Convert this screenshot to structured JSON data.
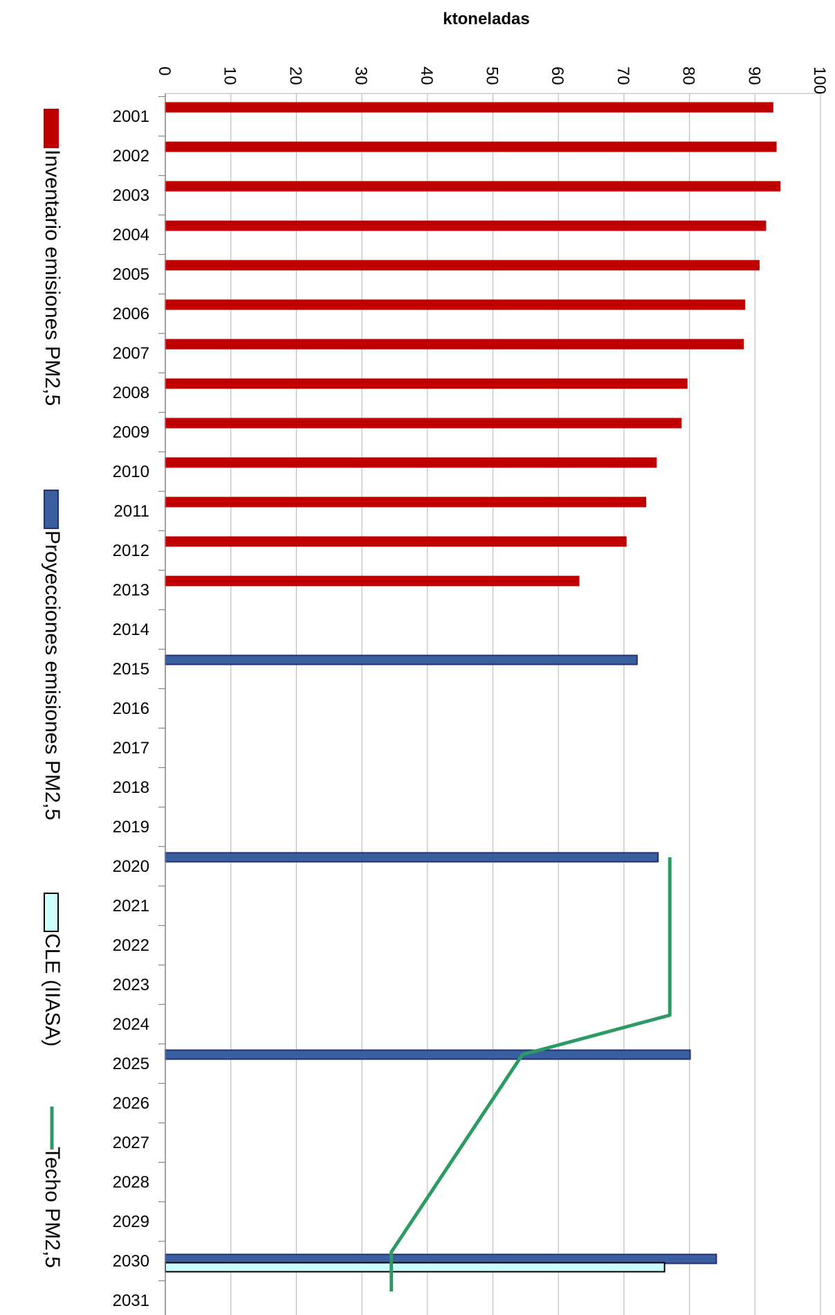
{
  "chart_data": {
    "type": "bar",
    "orientation": "horizontal",
    "xlabel": "ktoneladas",
    "xlim": [
      0,
      100
    ],
    "xticks": [
      0,
      10,
      20,
      30,
      40,
      50,
      60,
      70,
      80,
      90,
      100
    ],
    "grid": true,
    "legend_position": "left",
    "categories": [
      "2001",
      "2002",
      "2003",
      "2004",
      "2005",
      "2006",
      "2007",
      "2008",
      "2009",
      "2010",
      "2011",
      "2012",
      "2013",
      "2014",
      "2015",
      "2016",
      "2017",
      "2018",
      "2019",
      "2020",
      "2021",
      "2022",
      "2023",
      "2024",
      "2025",
      "2026",
      "2027",
      "2028",
      "2029",
      "2030",
      "2031"
    ],
    "series": [
      {
        "name": "Inventario emisiones PM2,5",
        "kind": "bar",
        "color": "#C00000",
        "border": "#C00000",
        "values": [
          92.7,
          93.2,
          93.8,
          91.6,
          90.6,
          88.4,
          88.2,
          79.6,
          78.7,
          74.9,
          73.3,
          70.3,
          63.1,
          null,
          null,
          null,
          null,
          null,
          null,
          null,
          null,
          null,
          null,
          null,
          null,
          null,
          null,
          null,
          null,
          null,
          null
        ]
      },
      {
        "name": "Proyecciones emisiones PM2,5",
        "kind": "bar",
        "color": "#3B5EA1",
        "border": "#1F3275",
        "values": [
          null,
          null,
          null,
          null,
          null,
          null,
          null,
          null,
          null,
          null,
          null,
          null,
          null,
          null,
          72.0,
          null,
          null,
          null,
          null,
          75.2,
          null,
          null,
          null,
          null,
          80.1,
          null,
          null,
          null,
          null,
          84.1,
          null
        ]
      },
      {
        "name": "CLE (IIASA)",
        "kind": "bar",
        "color": "#CCFFFF",
        "border": "#000000",
        "values": [
          null,
          null,
          null,
          null,
          null,
          null,
          null,
          null,
          null,
          null,
          null,
          null,
          null,
          null,
          null,
          null,
          null,
          null,
          null,
          null,
          null,
          null,
          null,
          null,
          null,
          null,
          null,
          null,
          null,
          76.2,
          null
        ]
      },
      {
        "name": "Techo  PM2,5",
        "kind": "line",
        "color": "#2E9A63",
        "points": [
          {
            "x": 77.0,
            "y": 2020
          },
          {
            "x": 77.0,
            "y": 2024
          },
          {
            "x": 54.5,
            "y": 2025
          },
          {
            "x": 34.5,
            "y": 2030
          },
          {
            "x": 34.5,
            "y": 2031
          }
        ]
      }
    ]
  }
}
